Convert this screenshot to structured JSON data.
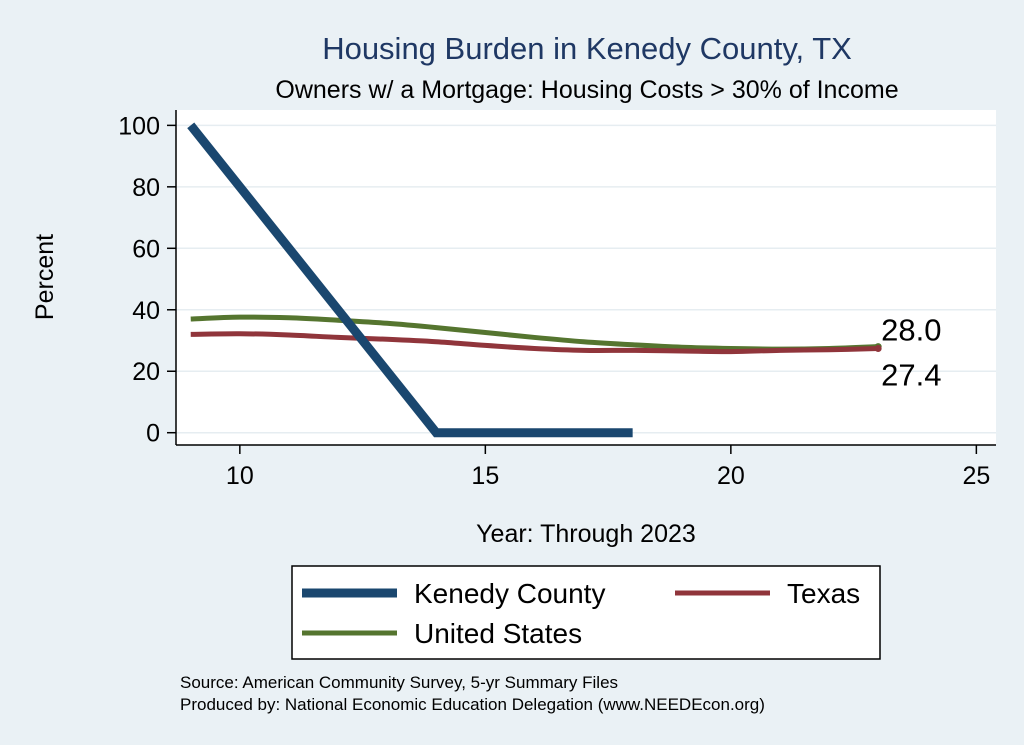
{
  "chart_data": {
    "type": "line",
    "title": "Housing Burden in Kenedy County, TX",
    "subtitle": "Owners w/ a Mortgage: Housing Costs > 30% of Income",
    "xlabel": "Year: Through 2023",
    "ylabel": "Percent",
    "xlim": [
      8.7,
      25.4
    ],
    "ylim": [
      -4,
      105
    ],
    "xticks": [
      10,
      15,
      20,
      25
    ],
    "yticks": [
      0,
      20,
      40,
      60,
      80,
      100
    ],
    "grid": true,
    "series": [
      {
        "name": "Kenedy County",
        "color": "#1a476f",
        "x": [
          9,
          14,
          15,
          16,
          17,
          18
        ],
        "y": [
          100,
          0,
          0,
          0,
          0,
          0
        ]
      },
      {
        "name": "Texas",
        "color": "#90353b",
        "x": [
          9,
          10,
          11,
          12,
          13,
          14,
          15,
          16,
          17,
          18,
          19,
          20,
          21,
          22,
          23
        ],
        "y": [
          32.0,
          32.2,
          31.8,
          31.0,
          30.4,
          29.6,
          28.4,
          27.4,
          26.8,
          26.8,
          26.6,
          26.4,
          26.8,
          27.0,
          27.4
        ]
      },
      {
        "name": "United States",
        "color": "#55752f",
        "x": [
          9,
          10,
          11,
          12,
          13,
          14,
          15,
          16,
          17,
          18,
          19,
          20,
          21,
          22,
          23
        ],
        "y": [
          37.0,
          37.6,
          37.4,
          36.6,
          35.6,
          34.2,
          32.6,
          31.0,
          29.6,
          28.6,
          27.8,
          27.4,
          27.2,
          27.4,
          28.0
        ]
      }
    ],
    "end_labels": [
      "28.0",
      "27.4"
    ],
    "legend": {
      "position": "bottom",
      "entries": [
        "Kenedy County",
        "Texas",
        "United States"
      ]
    },
    "notes": [
      "Source: American Community Survey, 5-yr Summary Files",
      "Produced by: National Economic Education Delegation (www.NEEDEcon.org)"
    ]
  }
}
